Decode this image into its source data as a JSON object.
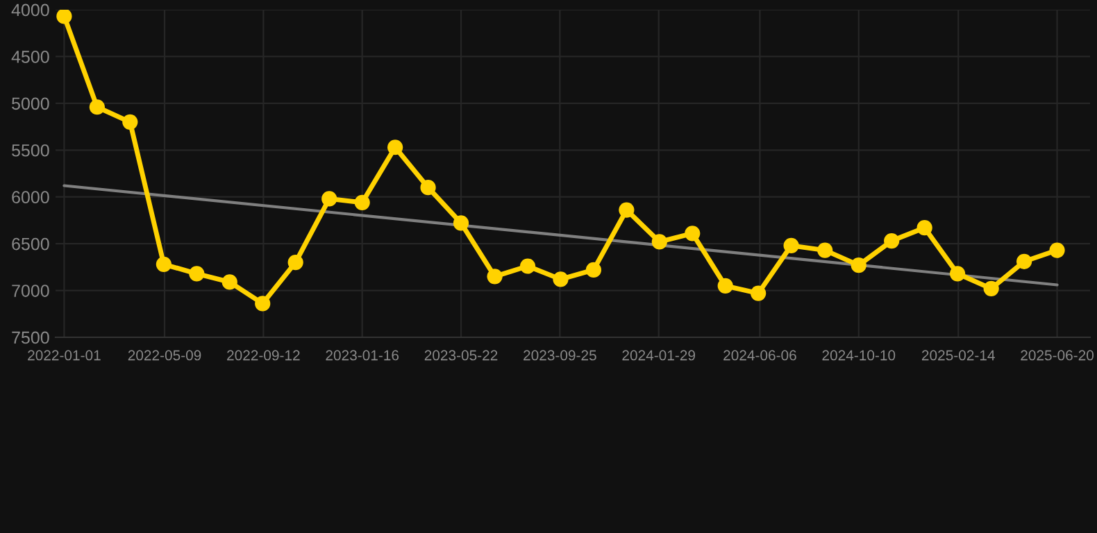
{
  "chart_data": {
    "type": "line",
    "x": [
      "2022-01-01",
      "2022-02-12",
      "2022-03-26",
      "2022-05-08",
      "2022-06-19",
      "2022-07-31",
      "2022-09-11",
      "2022-10-23",
      "2022-12-05",
      "2023-01-16",
      "2023-02-27",
      "2023-04-10",
      "2023-05-22",
      "2023-07-04",
      "2023-08-15",
      "2023-09-26",
      "2023-11-07",
      "2023-12-19",
      "2024-01-30",
      "2024-03-12",
      "2024-04-23",
      "2024-06-04",
      "2024-07-16",
      "2024-08-28",
      "2024-10-10",
      "2024-11-21",
      "2025-01-02",
      "2025-02-13",
      "2025-03-28",
      "2025-05-09",
      "2025-06-20"
    ],
    "series": [
      {
        "color": "#ffd200",
        "marker": "circle",
        "line_style": "solid",
        "values": [
          4070,
          5040,
          5200,
          6720,
          6820,
          6910,
          7140,
          6700,
          6020,
          6060,
          5470,
          5900,
          6280,
          6850,
          6740,
          6880,
          6780,
          6140,
          6480,
          6390,
          6950,
          7030,
          6520,
          6570,
          6730,
          6470,
          6330,
          6820,
          6980,
          6690,
          6570
        ]
      },
      {
        "color": "#808080",
        "marker": "none",
        "line_style": "solid",
        "x": [
          "2022-01-01",
          "2025-06-20"
        ],
        "values": [
          5880,
          6940
        ]
      }
    ],
    "ylim": [
      7500,
      4000
    ],
    "yticks": [
      4000,
      4500,
      5000,
      5500,
      6000,
      6500,
      7000,
      7500
    ],
    "xlim": [
      "2021-12-21",
      "2025-08-01"
    ],
    "xticks": [
      "2022-01-01",
      "2022-05-09",
      "2022-09-12",
      "2023-01-16",
      "2023-05-22",
      "2023-09-25",
      "2024-01-29",
      "2024-06-06",
      "2024-10-10",
      "2025-02-14",
      "2025-06-20"
    ],
    "grid": true
  }
}
